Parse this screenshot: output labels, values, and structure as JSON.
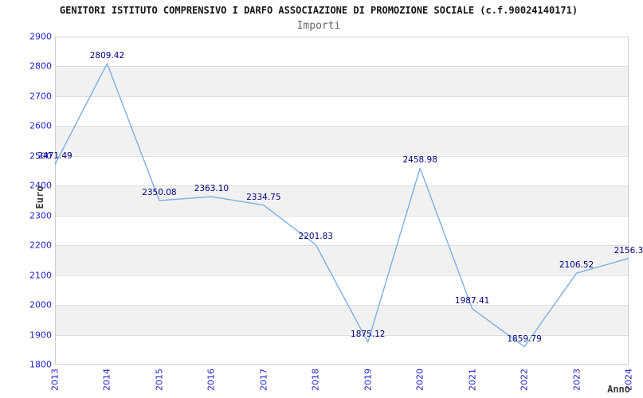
{
  "header": {
    "title": "GENITORI ISTITUTO COMPRENSIVO I DARFO ASSOCIAZIONE DI PROMOZIONE SOCIALE (c.f.90024140171)",
    "subtitle": "Importi"
  },
  "axes": {
    "y_label": "Euro",
    "x_label": "Anno"
  },
  "chart_data": {
    "type": "line",
    "title": "GENITORI ISTITUTO COMPRENSIVO I DARFO ASSOCIAZIONE DI PROMOZIONE SOCIALE (c.f.90024140171)",
    "subtitle": "Importi",
    "xlabel": "Anno",
    "ylabel": "Euro",
    "categories": [
      "2013",
      "2014",
      "2015",
      "2016",
      "2017",
      "2018",
      "2019",
      "2020",
      "2021",
      "2022",
      "2023",
      "2024"
    ],
    "values": [
      2471.49,
      2809.42,
      2350.08,
      2363.1,
      2334.75,
      2201.83,
      1875.12,
      2458.98,
      1987.41,
      1859.79,
      2106.52,
      2156.3
    ],
    "point_labels": [
      "2471.49",
      "2809.42",
      "2350.08",
      "2363.10",
      "2334.75",
      "2201.83",
      "1875.12",
      "2458.98",
      "1987.41",
      "1859.79",
      "2106.52",
      "2156.3"
    ],
    "ylim": [
      1800,
      2900
    ],
    "ytick_step": 100,
    "grid": true,
    "legend_position": "none",
    "colors": {
      "line": "#7cafe2",
      "point_label": "#000080",
      "tick_label": "#2222cc",
      "band_fill": "#f1f1f1",
      "grid_line": "#dddddd",
      "plot_border": "#cfcfcf"
    }
  }
}
